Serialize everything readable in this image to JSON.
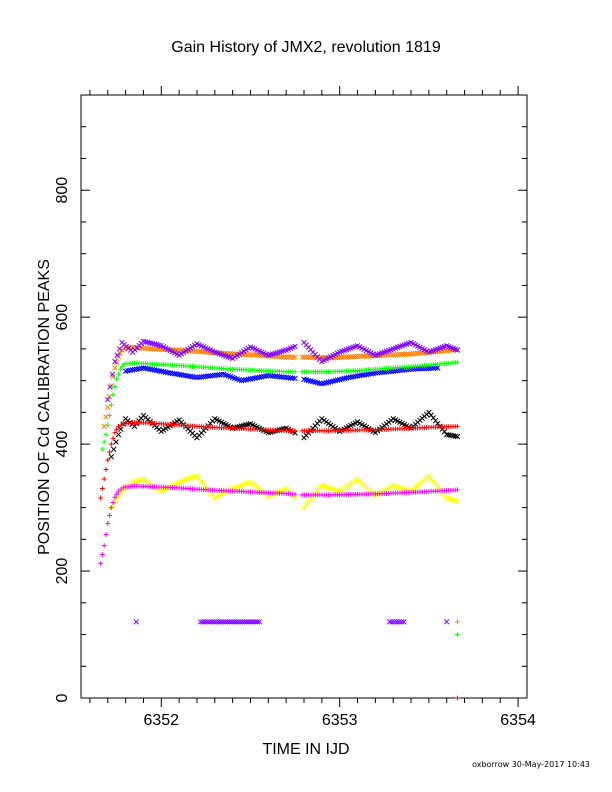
{
  "chart_data": {
    "type": "scatter",
    "title": "Gain History of JMX2, revolution 1819",
    "xlabel": "TIME IN IJD",
    "ylabel": "POSITION OF Cd CALIBRATION PEAKS",
    "xlim": [
      6351.55,
      6354.05
    ],
    "ylim": [
      0,
      950
    ],
    "xticks": [
      6352,
      6353,
      6354
    ],
    "yticks": [
      0,
      200,
      400,
      600,
      800
    ],
    "xtick_labels": [
      "6352",
      "6353",
      "6354"
    ],
    "ytick_labels": [
      "0",
      "200",
      "400",
      "600",
      "800"
    ],
    "grid": false,
    "legend": "none",
    "gap": [
      6352.75,
      6352.79
    ],
    "series": [
      {
        "color": "#ff8000",
        "marker": "x",
        "points": [
          [
            6351.68,
            428
          ],
          [
            6351.7,
            458
          ],
          [
            6351.72,
            492
          ],
          [
            6351.74,
            520
          ],
          [
            6351.76,
            538
          ],
          [
            6351.78,
            548
          ],
          [
            6351.8,
            552
          ],
          [
            6351.85,
            552
          ],
          [
            6351.95,
            550
          ],
          [
            6352.1,
            548
          ],
          [
            6352.25,
            545
          ],
          [
            6352.4,
            542
          ],
          [
            6352.55,
            540
          ],
          [
            6352.7,
            537
          ],
          [
            6352.75,
            537
          ],
          [
            6352.79,
            537
          ],
          [
            6352.95,
            536
          ],
          [
            6353.1,
            538
          ],
          [
            6353.25,
            540
          ],
          [
            6353.4,
            542
          ],
          [
            6353.55,
            546
          ],
          [
            6353.66,
            549
          ]
        ]
      },
      {
        "color": "#7f00ff",
        "marker": "x",
        "points": [
          [
            6351.7,
            470
          ],
          [
            6351.74,
            530
          ],
          [
            6351.78,
            560
          ],
          [
            6351.84,
            545
          ],
          [
            6351.9,
            562
          ],
          [
            6352.0,
            555
          ],
          [
            6352.1,
            540
          ],
          [
            6352.2,
            558
          ],
          [
            6352.3,
            545
          ],
          [
            6352.4,
            535
          ],
          [
            6352.5,
            553
          ],
          [
            6352.6,
            540
          ],
          [
            6352.7,
            548
          ],
          [
            6352.8,
            560
          ],
          [
            6352.9,
            530
          ],
          [
            6353.0,
            545
          ],
          [
            6353.1,
            555
          ],
          [
            6353.2,
            540
          ],
          [
            6353.3,
            550
          ],
          [
            6353.4,
            560
          ],
          [
            6353.5,
            545
          ],
          [
            6353.6,
            555
          ],
          [
            6353.66,
            548
          ]
        ]
      },
      {
        "color": "#0000ff",
        "marker": "x",
        "points": [
          [
            6351.8,
            515
          ],
          [
            6351.9,
            520
          ],
          [
            6352.05,
            512
          ],
          [
            6352.2,
            505
          ],
          [
            6352.35,
            510
          ],
          [
            6352.45,
            500
          ],
          [
            6352.6,
            508
          ],
          [
            6352.8,
            502
          ],
          [
            6352.9,
            495
          ],
          [
            6353.05,
            505
          ],
          [
            6353.2,
            512
          ],
          [
            6353.4,
            518
          ],
          [
            6353.55,
            520
          ]
        ]
      },
      {
        "color": "#00ff00",
        "marker": "+",
        "points": [
          [
            6351.67,
            392
          ],
          [
            6351.69,
            415
          ],
          [
            6351.71,
            445
          ],
          [
            6351.73,
            478
          ],
          [
            6351.75,
            503
          ],
          [
            6351.77,
            518
          ],
          [
            6351.79,
            526
          ],
          [
            6351.85,
            528
          ],
          [
            6351.95,
            526
          ],
          [
            6352.1,
            524
          ],
          [
            6352.25,
            521
          ],
          [
            6352.4,
            518
          ],
          [
            6352.55,
            516
          ],
          [
            6352.7,
            514
          ],
          [
            6352.75,
            514
          ],
          [
            6352.79,
            514
          ],
          [
            6352.95,
            514
          ],
          [
            6353.1,
            516
          ],
          [
            6353.25,
            519
          ],
          [
            6353.4,
            522
          ],
          [
            6353.55,
            526
          ],
          [
            6353.66,
            529
          ]
        ]
      },
      {
        "color": "#000000",
        "marker": "x",
        "points": [
          [
            6351.72,
            380
          ],
          [
            6351.76,
            415
          ],
          [
            6351.8,
            440
          ],
          [
            6351.85,
            428
          ],
          [
            6351.9,
            445
          ],
          [
            6352.0,
            420
          ],
          [
            6352.1,
            438
          ],
          [
            6352.2,
            410
          ],
          [
            6352.3,
            440
          ],
          [
            6352.4,
            425
          ],
          [
            6352.5,
            432
          ],
          [
            6352.6,
            418
          ],
          [
            6352.7,
            425
          ],
          [
            6352.8,
            410
          ],
          [
            6352.9,
            440
          ],
          [
            6353.0,
            420
          ],
          [
            6353.1,
            435
          ],
          [
            6353.2,
            418
          ],
          [
            6353.3,
            440
          ],
          [
            6353.4,
            425
          ],
          [
            6353.5,
            450
          ],
          [
            6353.6,
            415
          ],
          [
            6353.66,
            412
          ]
        ]
      },
      {
        "color": "#ff0000",
        "marker": "+",
        "points": [
          [
            6351.66,
            315
          ],
          [
            6351.68,
            345
          ],
          [
            6351.7,
            375
          ],
          [
            6351.72,
            400
          ],
          [
            6351.74,
            418
          ],
          [
            6351.76,
            428
          ],
          [
            6351.79,
            432
          ],
          [
            6351.85,
            434
          ],
          [
            6351.95,
            433
          ],
          [
            6352.1,
            430
          ],
          [
            6352.25,
            427
          ],
          [
            6352.4,
            425
          ],
          [
            6352.55,
            423
          ],
          [
            6352.7,
            421
          ],
          [
            6352.75,
            421
          ],
          [
            6352.79,
            421
          ],
          [
            6352.95,
            421
          ],
          [
            6353.1,
            422
          ],
          [
            6353.25,
            423
          ],
          [
            6353.4,
            425
          ],
          [
            6353.55,
            427
          ],
          [
            6353.66,
            428
          ]
        ]
      },
      {
        "color": "#ffff00",
        "marker": "x",
        "points": [
          [
            6351.72,
            300
          ],
          [
            6351.78,
            325
          ],
          [
            6351.84,
            340
          ],
          [
            6351.9,
            345
          ],
          [
            6352.0,
            325
          ],
          [
            6352.1,
            340
          ],
          [
            6352.2,
            350
          ],
          [
            6352.3,
            315
          ],
          [
            6352.4,
            330
          ],
          [
            6352.5,
            340
          ],
          [
            6352.6,
            318
          ],
          [
            6352.7,
            330
          ],
          [
            6352.8,
            300
          ],
          [
            6352.9,
            335
          ],
          [
            6353.0,
            325
          ],
          [
            6353.1,
            345
          ],
          [
            6353.2,
            318
          ],
          [
            6353.3,
            335
          ],
          [
            6353.4,
            325
          ],
          [
            6353.5,
            350
          ],
          [
            6353.6,
            315
          ],
          [
            6353.66,
            310
          ]
        ]
      },
      {
        "color": "#ff00ff",
        "marker": "+",
        "points": [
          [
            6351.66,
            212
          ],
          [
            6351.68,
            240
          ],
          [
            6351.7,
            275
          ],
          [
            6351.72,
            300
          ],
          [
            6351.74,
            316
          ],
          [
            6351.76,
            326
          ],
          [
            6351.79,
            332
          ],
          [
            6351.85,
            334
          ],
          [
            6351.95,
            333
          ],
          [
            6352.1,
            331
          ],
          [
            6352.25,
            328
          ],
          [
            6352.4,
            326
          ],
          [
            6352.55,
            324
          ],
          [
            6352.7,
            322
          ],
          [
            6352.75,
            321
          ],
          [
            6352.79,
            320
          ],
          [
            6352.95,
            320
          ],
          [
            6353.1,
            321
          ],
          [
            6353.25,
            322
          ],
          [
            6353.4,
            324
          ],
          [
            6353.55,
            326
          ],
          [
            6353.66,
            328
          ]
        ]
      },
      {
        "color": "#7f00ff",
        "marker": "x",
        "points": [
          [
            6351.86,
            120
          ],
          [
            6352.22,
            120
          ],
          [
            6352.36,
            120
          ],
          [
            6352.48,
            120
          ],
          [
            6352.55,
            120
          ],
          [
            6353.28,
            120
          ],
          [
            6353.36,
            120
          ],
          [
            6353.6,
            120
          ]
        ]
      },
      {
        "color": "#ff8000",
        "marker": "+",
        "points": [
          [
            6353.66,
            120
          ]
        ]
      },
      {
        "color": "#00ff00",
        "marker": "+",
        "points": [
          [
            6353.66,
            100
          ]
        ]
      },
      {
        "color": "#ff0000",
        "marker": "+",
        "points": [
          [
            6353.66,
            0
          ]
        ]
      }
    ]
  },
  "footer": "oxborrow 30-May-2017 10:43"
}
